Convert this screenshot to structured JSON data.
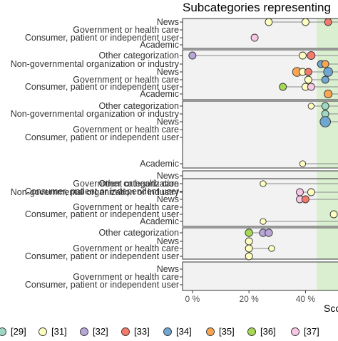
{
  "chart_data": {
    "type": "scatter",
    "title": "Subcategories representing",
    "xlabel": "Sco",
    "ylabel": "",
    "x_ticks": [
      "0 %",
      "20 %",
      "40 %"
    ],
    "xlim": [
      -3.5,
      52
    ],
    "grid": false,
    "shaded_region": {
      "from": 44,
      "to": 52,
      "color": "#d9efd0"
    },
    "panel_background": "#f2f2f2",
    "legend": {
      "position": "bottom",
      "items": [
        {
          "label": "[29]",
          "color": "#9ed8c5"
        },
        {
          "label": "[31]",
          "color": "#ffffbf"
        },
        {
          "label": "[32]",
          "color": "#b9a6d8"
        },
        {
          "label": "[33]",
          "color": "#f47a6b"
        },
        {
          "label": "[34]",
          "color": "#6fa7d0"
        },
        {
          "label": "[35]",
          "color": "#f9a552"
        },
        {
          "label": "[36]",
          "color": "#a6d853"
        },
        {
          "label": "[37]",
          "color": "#f8c7e3"
        }
      ]
    },
    "panels": [
      {
        "rows": [
          "News",
          "Government or health care",
          "Consumer, patient or independent user",
          "Academic"
        ],
        "segments": [
          {
            "row": 0,
            "from": 27,
            "to": 52
          },
          {
            "row": 2,
            "from": 22,
            "to": 22
          }
        ],
        "points": [
          {
            "row": 0,
            "x": 27,
            "size": 1,
            "color": "#ffffbf"
          },
          {
            "row": 0,
            "x": 40,
            "size": 1,
            "color": "#ffffbf"
          },
          {
            "row": 0,
            "x": 48,
            "size": 1,
            "color": "#f47a6b"
          },
          {
            "row": 2,
            "x": 22,
            "size": 1,
            "color": "#f8c7e3"
          }
        ]
      },
      {
        "rows": [
          "Other categorization",
          "Non-governmental organization or industry",
          "News",
          "Government or health care",
          "Consumer, patient or independent user",
          "Academic"
        ],
        "segments": [
          {
            "row": 0,
            "from": 0,
            "to": 52
          },
          {
            "row": 1,
            "from": 44,
            "to": 52
          },
          {
            "row": 2,
            "from": 37,
            "to": 52
          },
          {
            "row": 3,
            "from": 41,
            "to": 52
          },
          {
            "row": 4,
            "from": 32,
            "to": 52
          },
          {
            "row": 5,
            "from": 48,
            "to": 52
          }
        ],
        "points": [
          {
            "row": 0,
            "x": 0,
            "size": 1,
            "color": "#b9a6d8"
          },
          {
            "row": 0,
            "x": 39,
            "size": 1,
            "color": "#ffffbf"
          },
          {
            "row": 0,
            "x": 42,
            "size": 1.2,
            "color": "#f47a6b"
          },
          {
            "row": 1,
            "x": 45.5,
            "size": 1,
            "color": "#6fa7d0"
          },
          {
            "row": 1,
            "x": 47,
            "size": 1,
            "color": "#f9a552"
          },
          {
            "row": 2,
            "x": 37,
            "size": 1.5,
            "color": "#f9a552"
          },
          {
            "row": 2,
            "x": 39,
            "size": 1,
            "color": "#ffffbf"
          },
          {
            "row": 2,
            "x": 41,
            "size": 1,
            "color": "#f47a6b"
          },
          {
            "row": 2,
            "x": 48,
            "size": 1.5,
            "color": "#6fa7d0"
          },
          {
            "row": 3,
            "x": 41,
            "size": 1,
            "color": "#ffffbf"
          },
          {
            "row": 3,
            "x": 47,
            "size": 1,
            "color": "#6fa7d0"
          },
          {
            "row": 4,
            "x": 32,
            "size": 1,
            "color": "#a6d853"
          },
          {
            "row": 4,
            "x": 40,
            "size": 1,
            "color": "#ffffbf"
          },
          {
            "row": 4,
            "x": 42,
            "size": 1,
            "color": "#f8c7e3"
          },
          {
            "row": 5,
            "x": 48,
            "size": 1.2,
            "color": "#f9a552"
          }
        ]
      },
      {
        "rows": [
          "Other categorization",
          "Non-governmental organization or industry",
          "News",
          "Government or health care",
          "Consumer, patient or independent user",
          "Academic"
        ],
        "segments": [
          {
            "row": 0,
            "from": 42,
            "to": 52
          },
          {
            "row": 1,
            "from": 47,
            "to": 52
          },
          {
            "row": 2,
            "from": 47,
            "to": 52
          },
          {
            "row": 5,
            "from": 39,
            "to": 52
          }
        ],
        "points": [
          {
            "row": 0,
            "x": 42,
            "size": 0.7,
            "color": "#ffffbf"
          },
          {
            "row": 0,
            "x": 47,
            "size": 1,
            "color": "#9ed8c5"
          },
          {
            "row": 1,
            "x": 47,
            "size": 1,
            "color": "#9ed8c5"
          },
          {
            "row": 2,
            "x": 47,
            "size": 1.9,
            "color": "#6fa7d0"
          },
          {
            "row": 5,
            "x": 39,
            "size": 0.7,
            "color": "#ffffbf"
          }
        ]
      },
      {
        "rows": [
          "News",
          "Government or health care",
          "Consumer, patient or independent user"
        ],
        "segments": [],
        "points": [
          {
            "row": 2,
            "x": 40,
            "size": 1,
            "color": "#ffffbf"
          }
        ]
      },
      {
        "rows": [
          "Other categorization",
          "Non-governmental organization or industry",
          "News",
          "Government or health care",
          "Consumer, patient or independent user",
          "Academic"
        ],
        "segments": [
          {
            "row": 0,
            "from": 25,
            "to": 52
          },
          {
            "row": 1,
            "from": 38,
            "to": 52
          },
          {
            "row": 2,
            "from": 38,
            "to": 52
          },
          {
            "row": 5,
            "from": 25,
            "to": 52
          }
        ],
        "points": [
          {
            "row": 0,
            "x": 25,
            "size": 0.7,
            "color": "#ffffbf"
          },
          {
            "row": 1,
            "x": 38,
            "size": 1,
            "color": "#f8c7e3"
          },
          {
            "row": 1,
            "x": 42,
            "size": 1,
            "color": "#ffffbf"
          },
          {
            "row": 2,
            "x": 38,
            "size": 1,
            "color": "#f8c7e3"
          },
          {
            "row": 2,
            "x": 40,
            "size": 1,
            "color": "#f47a6b"
          },
          {
            "row": 4,
            "x": 50,
            "size": 1,
            "color": "#ffffbf"
          },
          {
            "row": 5,
            "x": 25,
            "size": 0.7,
            "color": "#ffffbf"
          }
        ]
      },
      {
        "rows": [
          "Other categorization",
          "News",
          "Government or health care",
          "Consumer, patient or independent user"
        ],
        "segments": [
          {
            "row": 0,
            "from": 20,
            "to": 27
          },
          {
            "row": 2,
            "from": 20,
            "to": 28
          }
        ],
        "points": [
          {
            "row": 0,
            "x": 20,
            "size": 1.1,
            "color": "#a6d853"
          },
          {
            "row": 0,
            "x": 25,
            "size": 1.1,
            "color": "#b9a6d8"
          },
          {
            "row": 0,
            "x": 27,
            "size": 1.1,
            "color": "#b9a6d8"
          },
          {
            "row": 1,
            "x": 20,
            "size": 1,
            "color": "#ffffbf"
          },
          {
            "row": 2,
            "x": 20,
            "size": 1,
            "color": "#ffffbf"
          },
          {
            "row": 2,
            "x": 28,
            "size": 0.7,
            "color": "#ffffbf"
          },
          {
            "row": 3,
            "x": 20,
            "size": 1,
            "color": "#ffffbf"
          }
        ]
      },
      {
        "rows": [
          "News",
          "Government or health care",
          "Consumer, patient or independent user"
        ],
        "segments": [],
        "points": []
      }
    ]
  }
}
